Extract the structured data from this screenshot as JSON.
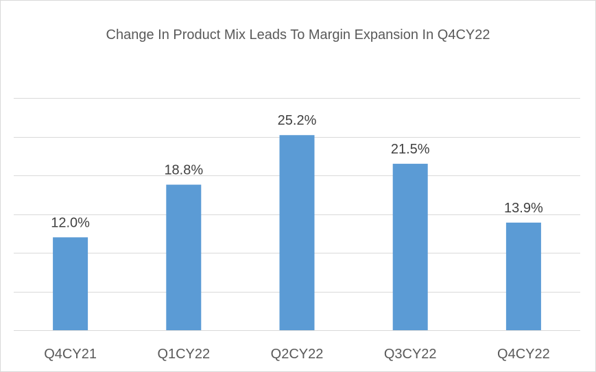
{
  "chart_data": {
    "type": "bar",
    "title": "Change In Product Mix Leads To Margin Expansion In Q4CY22",
    "categories": [
      "Q4CY21",
      "Q1CY22",
      "Q2CY22",
      "Q3CY22",
      "Q4CY22"
    ],
    "values": [
      12.0,
      18.8,
      25.2,
      21.5,
      13.9
    ],
    "data_labels": [
      "12.0%",
      "18.8%",
      "25.2%",
      "21.5%",
      "13.9%"
    ],
    "xlabel": "",
    "ylabel": "",
    "ylim": [
      0,
      30
    ],
    "grid": true,
    "legend": "none",
    "colors": {
      "bar": "#5b9bd5"
    }
  }
}
